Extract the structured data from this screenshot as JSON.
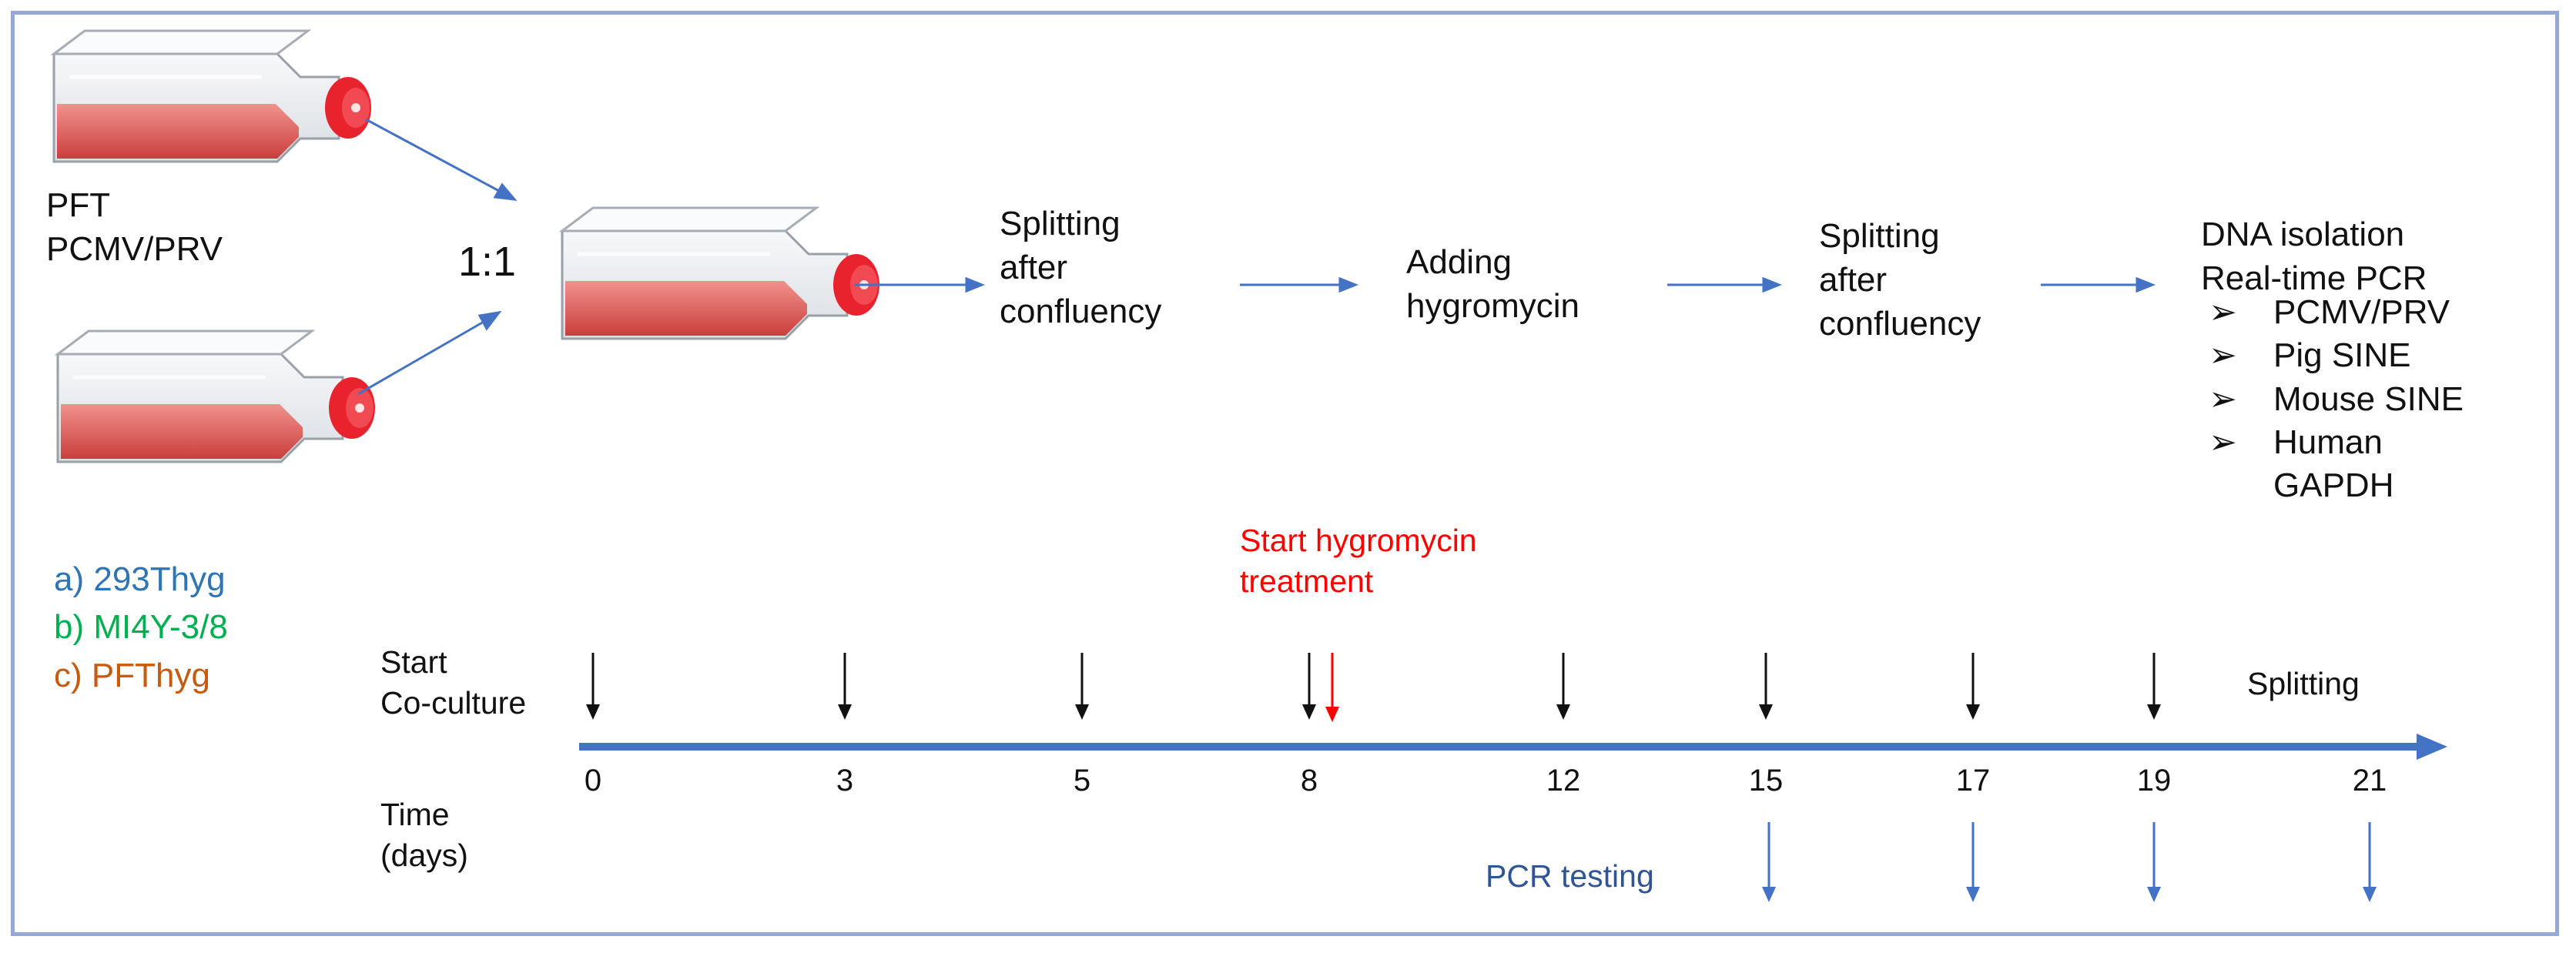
{
  "inputs": {
    "label_lines": [
      "PFT",
      "PCMV/PRV"
    ],
    "ratio": "1:1"
  },
  "steps": [
    {
      "lines": [
        "Splitting",
        "after",
        "confluency"
      ]
    },
    {
      "lines": [
        "Adding",
        "hygromycin"
      ]
    },
    {
      "lines": [
        "Splitting",
        "after",
        "confluency"
      ]
    }
  ],
  "analysis": {
    "lines": [
      "DNA isolation",
      "Real-time PCR"
    ],
    "targets": [
      "PCMV/PRV",
      "Pig SINE",
      "Mouse SINE",
      "Human",
      "GAPDH"
    ],
    "bullet": "➢"
  },
  "cell_lines": [
    {
      "text": "a) 293Thyg",
      "color": "#2E75B6"
    },
    {
      "text": "b) MI4Y-3/8",
      "color": "#00B050"
    },
    {
      "text": "c) PFThyg",
      "color": "#C55A11"
    }
  ],
  "timeline": {
    "start_label": [
      "Start",
      "Co-culture"
    ],
    "time_label": [
      "Time",
      "(days)"
    ],
    "days": [
      "0",
      "3",
      "5",
      "8",
      "12",
      "15",
      "17",
      "19",
      "21"
    ],
    "splitting_label": "Splitting",
    "hygromycin_label": [
      "Start hygromycin",
      "treatment"
    ],
    "pcr_label": "PCR testing",
    "pcr_days": [
      "15",
      "17",
      "19",
      "21"
    ]
  },
  "colors": {
    "axis": "#4472C4",
    "arrow_blue": "#4472C4",
    "red": "#FF0000",
    "pcr_text": "#2F5597",
    "medium": "#E05A57",
    "cap": "#F0303A"
  }
}
